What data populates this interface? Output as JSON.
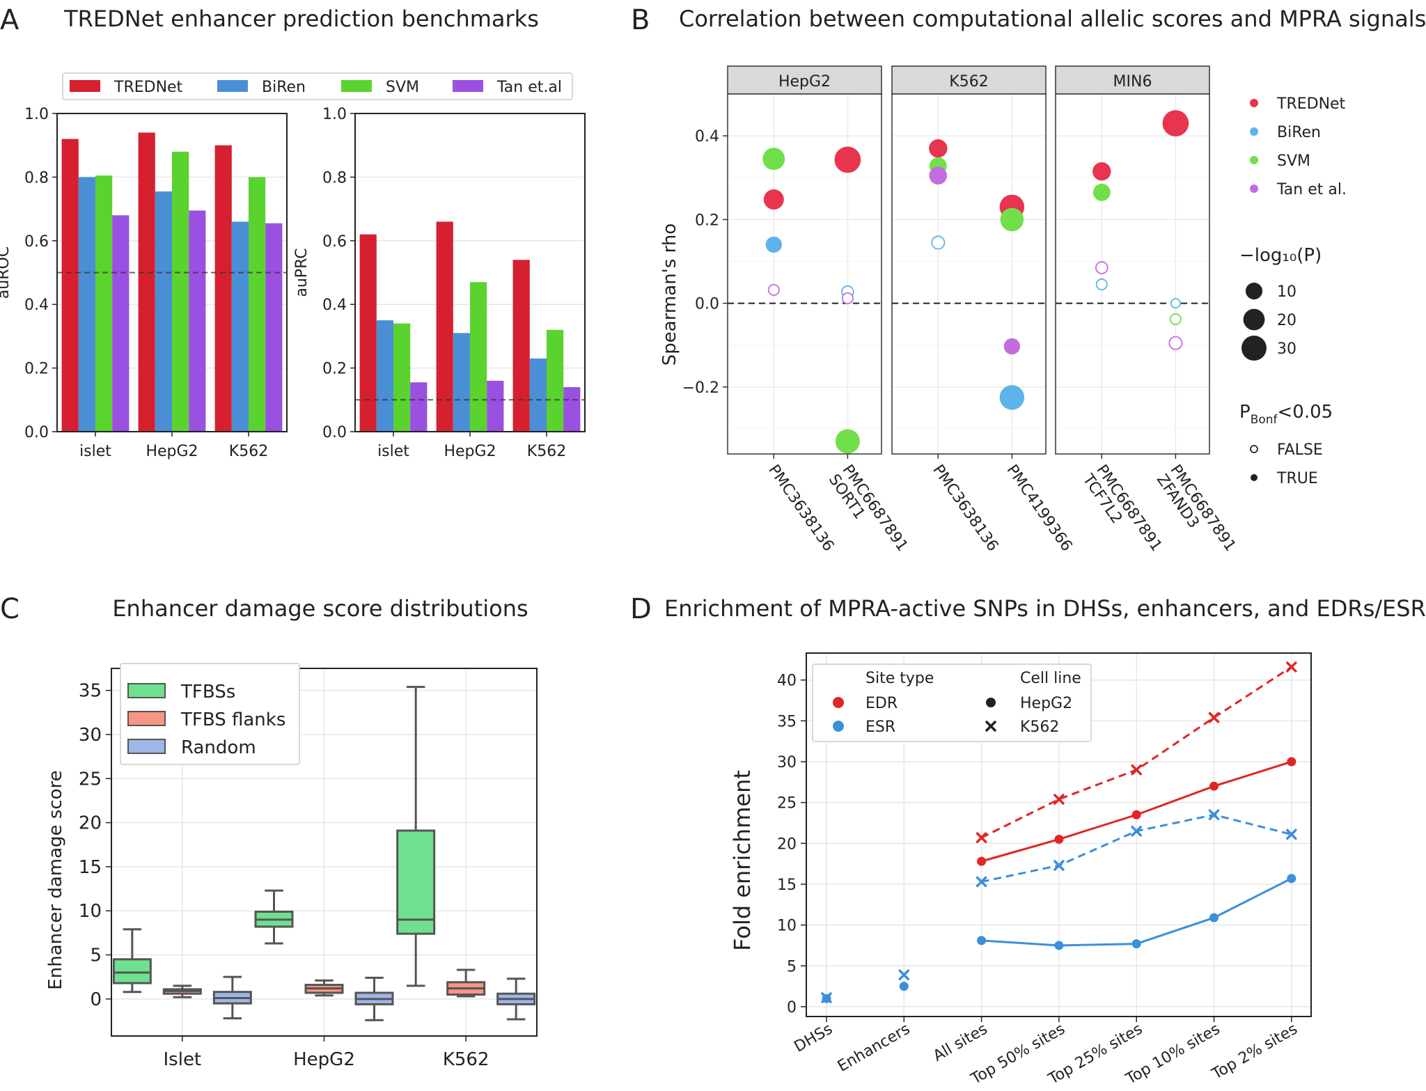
{
  "panel_labels": {
    "a": "A",
    "b": "B",
    "c": "C",
    "d": "D"
  },
  "colors": {
    "tred": "#d62030",
    "biren": "#4a8fd6",
    "svm": "#5ad32e",
    "tan": "#9a50e0",
    "b_tred": "#e8344f",
    "b_biren": "#5db4e8",
    "b_svm": "#6fe04a",
    "b_tan": "#c56be0",
    "tfbs": "#6fe08f",
    "flank": "#f79684",
    "random": "#9fb6e6",
    "edr": "#e02525",
    "esr": "#3b8fdb"
  },
  "chart_data": [
    {
      "id": "A",
      "type": "bar",
      "title": "TREDNet enhancer prediction benchmarks",
      "legend": [
        "TREDNet",
        "BiRen",
        "SVM",
        "Tan et.al"
      ],
      "legend_position": "top",
      "categories": [
        "islet",
        "HepG2",
        "K562"
      ],
      "subplots": [
        {
          "ylabel": "auROC",
          "ylim": [
            0,
            1
          ],
          "yticks": [
            "0.0",
            "0.2",
            "0.4",
            "0.6",
            "0.8",
            "1.0"
          ],
          "baseline": 0.5,
          "series": [
            {
              "name": "TREDNet",
              "values": [
                0.92,
                0.94,
                0.9
              ]
            },
            {
              "name": "BiRen",
              "values": [
                0.8,
                0.755,
                0.66
              ]
            },
            {
              "name": "SVM",
              "values": [
                0.805,
                0.88,
                0.8
              ]
            },
            {
              "name": "Tan et.al",
              "values": [
                0.68,
                0.695,
                0.655
              ]
            }
          ]
        },
        {
          "ylabel": "auPRC",
          "ylim": [
            0,
            1
          ],
          "yticks": [
            "0.0",
            "0.2",
            "0.4",
            "0.6",
            "0.8",
            "1.0"
          ],
          "baseline": 0.1,
          "series": [
            {
              "name": "TREDNet",
              "values": [
                0.62,
                0.66,
                0.54
              ]
            },
            {
              "name": "BiRen",
              "values": [
                0.35,
                0.31,
                0.23
              ]
            },
            {
              "name": "SVM",
              "values": [
                0.34,
                0.47,
                0.32
              ]
            },
            {
              "name": "Tan et.al",
              "values": [
                0.155,
                0.16,
                0.14
              ]
            }
          ]
        }
      ]
    },
    {
      "id": "B",
      "type": "scatter",
      "title": "Correlation between computational allelic scores and MPRA signals",
      "ylabel": "Spearman's rho",
      "ylim": [
        -0.36,
        0.5
      ],
      "yticks": [
        "0.4",
        "0.2",
        "0.0",
        "−0.2"
      ],
      "facets": [
        {
          "name": "HepG2",
          "studies": [
            "PMC3638136",
            "PMC6687891 SORT1"
          ]
        },
        {
          "name": "K562",
          "studies": [
            "PMC3638136",
            "PMC4199366"
          ]
        },
        {
          "name": "MIN6",
          "studies": [
            "PMC6687891 TCF7L2",
            "PMC6687891 ZFAND3"
          ]
        }
      ],
      "points": [
        {
          "facet": 0,
          "study": 0,
          "method": "SVM",
          "rho": 0.345,
          "nlogp": 22,
          "bonf": true
        },
        {
          "facet": 0,
          "study": 0,
          "method": "TREDNet",
          "rho": 0.248,
          "nlogp": 17,
          "bonf": true
        },
        {
          "facet": 0,
          "study": 0,
          "method": "BiRen",
          "rho": 0.14,
          "nlogp": 9,
          "bonf": true
        },
        {
          "facet": 0,
          "study": 0,
          "method": "Tan et al.",
          "rho": 0.032,
          "nlogp": 2,
          "bonf": false
        },
        {
          "facet": 0,
          "study": 1,
          "method": "TREDNet",
          "rho": 0.343,
          "nlogp": 34,
          "bonf": true
        },
        {
          "facet": 0,
          "study": 1,
          "method": "BiRen",
          "rho": 0.027,
          "nlogp": 3,
          "bonf": false
        },
        {
          "facet": 0,
          "study": 1,
          "method": "Tan et al.",
          "rho": 0.012,
          "nlogp": 2,
          "bonf": false
        },
        {
          "facet": 0,
          "study": 1,
          "method": "SVM",
          "rho": -0.33,
          "nlogp": 28,
          "bonf": true
        },
        {
          "facet": 1,
          "study": 0,
          "method": "TREDNet",
          "rho": 0.37,
          "nlogp": 13,
          "bonf": true
        },
        {
          "facet": 1,
          "study": 0,
          "method": "SVM",
          "rho": 0.328,
          "nlogp": 11,
          "bonf": true
        },
        {
          "facet": 1,
          "study": 0,
          "method": "Tan et al.",
          "rho": 0.305,
          "nlogp": 12,
          "bonf": true
        },
        {
          "facet": 1,
          "study": 0,
          "method": "BiRen",
          "rho": 0.145,
          "nlogp": 4,
          "bonf": false
        },
        {
          "facet": 1,
          "study": 1,
          "method": "TREDNet",
          "rho": 0.23,
          "nlogp": 29,
          "bonf": true
        },
        {
          "facet": 1,
          "study": 1,
          "method": "SVM",
          "rho": 0.2,
          "nlogp": 25,
          "bonf": true
        },
        {
          "facet": 1,
          "study": 1,
          "method": "Tan et al.",
          "rho": -0.103,
          "nlogp": 9,
          "bonf": true
        },
        {
          "facet": 1,
          "study": 1,
          "method": "BiRen",
          "rho": -0.225,
          "nlogp": 29,
          "bonf": true
        },
        {
          "facet": 2,
          "study": 0,
          "method": "TREDNet",
          "rho": 0.315,
          "nlogp": 13,
          "bonf": true
        },
        {
          "facet": 2,
          "study": 0,
          "method": "SVM",
          "rho": 0.265,
          "nlogp": 11,
          "bonf": true
        },
        {
          "facet": 2,
          "study": 0,
          "method": "Tan et al.",
          "rho": 0.085,
          "nlogp": 3,
          "bonf": false
        },
        {
          "facet": 2,
          "study": 0,
          "method": "BiRen",
          "rho": 0.045,
          "nlogp": 2,
          "bonf": false
        },
        {
          "facet": 2,
          "study": 1,
          "method": "TREDNet",
          "rho": 0.43,
          "nlogp": 34,
          "bonf": true
        },
        {
          "facet": 2,
          "study": 1,
          "method": "BiRen",
          "rho": 0.0,
          "nlogp": 1,
          "bonf": false
        },
        {
          "facet": 2,
          "study": 1,
          "method": "SVM",
          "rho": -0.038,
          "nlogp": 2,
          "bonf": false
        },
        {
          "facet": 2,
          "study": 1,
          "method": "Tan et al.",
          "rho": -0.095,
          "nlogp": 4,
          "bonf": false
        }
      ],
      "legend_methods": [
        "TREDNet",
        "BiRen",
        "SVM",
        "Tan et al."
      ],
      "legend_size_title": "−log₁₀(P)",
      "legend_size_values": [
        10,
        20,
        30
      ],
      "legend_sig_title": "P_Bonf<0.05",
      "legend_sig_values": [
        "FALSE",
        "TRUE"
      ]
    },
    {
      "id": "C",
      "type": "box",
      "title": "Enhancer damage score distributions",
      "ylabel": "Enhancer damage score",
      "ylim": [
        -4.2,
        37.5
      ],
      "yticks": [
        "0",
        "5",
        "10",
        "15",
        "20",
        "25",
        "30",
        "35"
      ],
      "categories": [
        "Islet",
        "HepG2",
        "K562"
      ],
      "legend": [
        "TFBSs",
        "TFBS flanks",
        "Random"
      ],
      "boxes": [
        [
          {
            "min": 0.8,
            "q1": 1.8,
            "median": 3.0,
            "q3": 4.5,
            "max": 7.9
          },
          {
            "min": 0.2,
            "q1": 0.6,
            "median": 0.9,
            "q3": 1.1,
            "max": 1.5
          },
          {
            "min": -2.2,
            "q1": -0.5,
            "median": 0.1,
            "q3": 0.8,
            "max": 2.5
          }
        ],
        [
          {
            "min": 6.3,
            "q1": 8.2,
            "median": 9.0,
            "q3": 9.9,
            "max": 12.3
          },
          {
            "min": 0.4,
            "q1": 0.7,
            "median": 1.2,
            "q3": 1.6,
            "max": 2.1
          },
          {
            "min": -2.4,
            "q1": -0.6,
            "median": 0.0,
            "q3": 0.7,
            "max": 2.4
          }
        ],
        [
          {
            "min": 1.5,
            "q1": 7.4,
            "median": 9.0,
            "q3": 19.1,
            "max": 35.4
          },
          {
            "min": 0.3,
            "q1": 0.5,
            "median": 1.2,
            "q3": 1.9,
            "max": 3.3
          },
          {
            "min": -2.3,
            "q1": -0.6,
            "median": 0.0,
            "q3": 0.6,
            "max": 2.3
          }
        ]
      ]
    },
    {
      "id": "D",
      "type": "line",
      "title": "Enrichment of MPRA-active SNPs in DHSs, enhancers, and EDRs/ESRs",
      "ylabel": "Fold enrichment",
      "ylim": [
        -1.2,
        43.3
      ],
      "yticks": [
        "0",
        "5",
        "10",
        "15",
        "20",
        "25",
        "30",
        "35",
        "40"
      ],
      "categories": [
        "DHSs",
        "Enhancers",
        "All sites",
        "Top 50% sites",
        "Top 25% sites",
        "Top 10% sites",
        "Top 2% sites"
      ],
      "series": [
        {
          "name": "EDR K562",
          "site": "EDR",
          "cell": "K562",
          "dash": true,
          "x": [
            2,
            3,
            4,
            5,
            6
          ],
          "values": [
            20.7,
            25.4,
            29.0,
            35.4,
            41.6
          ]
        },
        {
          "name": "EDR HepG2",
          "site": "EDR",
          "cell": "HepG2",
          "dash": false,
          "x": [
            2,
            3,
            4,
            5,
            6
          ],
          "values": [
            17.8,
            20.5,
            23.5,
            27.0,
            30.0
          ]
        },
        {
          "name": "ESR K562",
          "site": "ESR",
          "cell": "K562",
          "dash": true,
          "x": [
            0,
            1,
            2,
            3,
            4,
            5,
            6
          ],
          "values": [
            1.1,
            3.9,
            15.3,
            17.3,
            21.5,
            23.5,
            21.1
          ]
        },
        {
          "name": "ESR HepG2",
          "site": "ESR",
          "cell": "HepG2",
          "dash": false,
          "x": [
            0,
            1,
            2,
            3,
            4,
            5,
            6
          ],
          "values": [
            1.0,
            2.5,
            8.1,
            7.5,
            7.7,
            10.9,
            15.7
          ]
        }
      ],
      "legend_site_title": "Site type",
      "legend_site": [
        "EDR",
        "ESR"
      ],
      "legend_cell_title": "Cell line",
      "legend_cell": [
        "HepG2",
        "K562"
      ]
    }
  ]
}
